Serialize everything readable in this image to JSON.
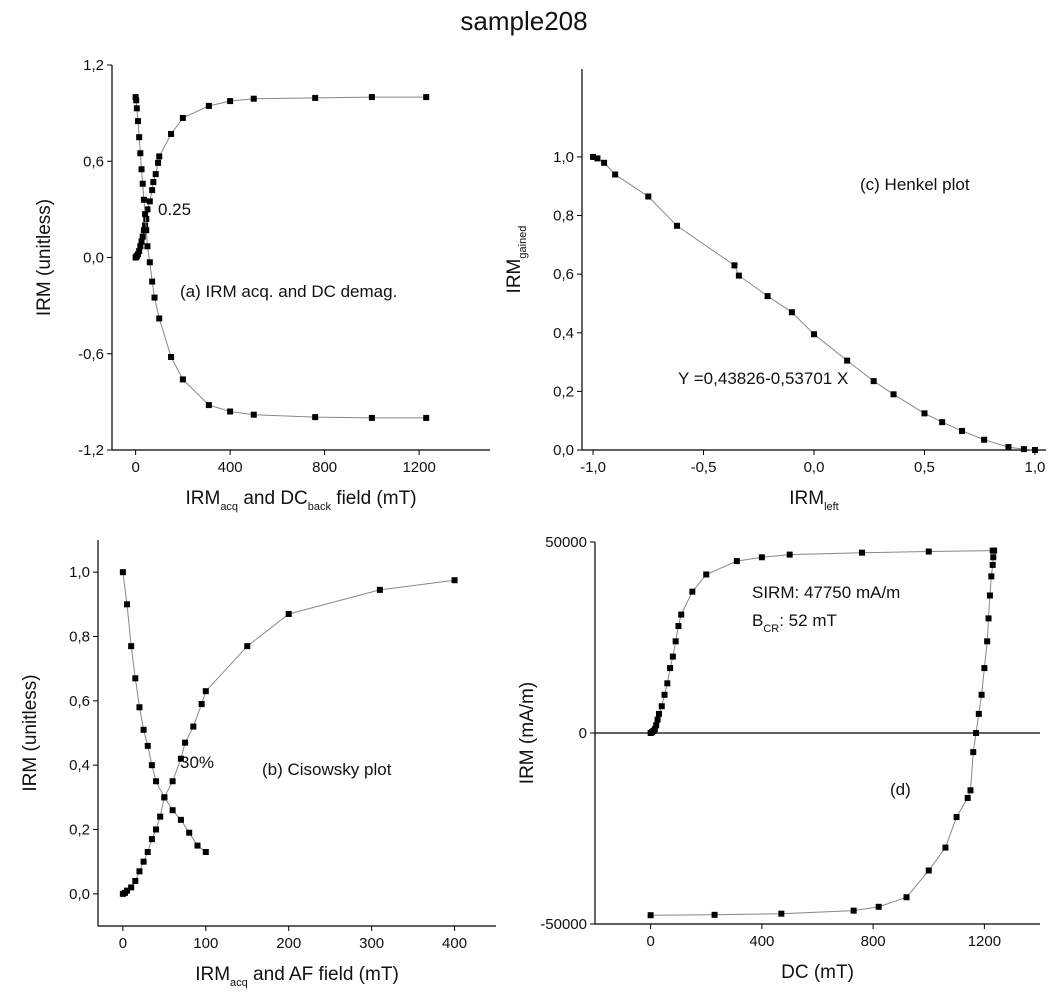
{
  "title": "sample208",
  "chart_data": [
    {
      "type": "line",
      "xlim": [
        -100,
        1500
      ],
      "ylim": [
        -1.2,
        1.2
      ],
      "xticks": [
        0,
        400,
        800,
        1200
      ],
      "yticks": [
        {
          "value": 1.2,
          "label": "1,2"
        },
        {
          "value": 0.6,
          "label": "0,6"
        },
        {
          "value": 0,
          "label": "0,0"
        },
        {
          "value": -0.6,
          "label": "-0,6"
        },
        {
          "value": -1.2,
          "label": "-1,2"
        }
      ],
      "xlabel": [
        "IRM",
        "acq",
        " and DC",
        "back",
        " field (mT)"
      ],
      "ylabel": [
        "IRM (unitless)"
      ],
      "annotations": [
        [
          "0.25"
        ],
        [
          "(a) IRM acq. and DC demag."
        ]
      ],
      "series": [
        {
          "color": "#888888",
          "marker": "#000000",
          "x": [
            0,
            2.5,
            5,
            10,
            15,
            20,
            25,
            30,
            35,
            40,
            45,
            50,
            60,
            70,
            75,
            85,
            95,
            100,
            150,
            200,
            310,
            400,
            500,
            760,
            1000,
            1230
          ],
          "values": [
            0,
            0.003,
            0.01,
            0.02,
            0.04,
            0.07,
            0.1,
            0.13,
            0.17,
            0.2,
            0.24,
            0.3,
            0.35,
            0.42,
            0.47,
            0.52,
            0.59,
            0.63,
            0.77,
            0.87,
            0.945,
            0.975,
            0.99,
            0.995,
            1.0,
            1.0
          ]
        },
        {
          "color": "#888888",
          "marker": "#000000",
          "x": [
            0,
            2.5,
            5,
            10,
            15,
            20,
            25,
            30,
            35,
            40,
            45,
            50,
            60,
            70,
            80,
            100,
            150,
            200,
            310,
            400,
            500,
            760,
            1000,
            1230
          ],
          "values": [
            1.0,
            0.98,
            0.93,
            0.85,
            0.75,
            0.65,
            0.55,
            0.46,
            0.36,
            0.27,
            0.17,
            0.07,
            -0.03,
            -0.15,
            -0.25,
            -0.38,
            -0.62,
            -0.76,
            -0.92,
            -0.96,
            -0.98,
            -0.995,
            -1.0,
            -1.0
          ]
        }
      ]
    },
    {
      "type": "line",
      "xlim": [
        -30,
        450
      ],
      "ylim": [
        -0.1,
        1.1
      ],
      "xticks": [
        0,
        100,
        200,
        300,
        400
      ],
      "yticks": [
        {
          "value": 0,
          "label": "0,0"
        },
        {
          "value": 0.2,
          "label": "0,2"
        },
        {
          "value": 0.4,
          "label": "0,4"
        },
        {
          "value": 0.6,
          "label": "0,6"
        },
        {
          "value": 0.8,
          "label": "0,8"
        },
        {
          "value": 1,
          "label": "1,0"
        }
      ],
      "xlabel": [
        "IRM",
        "acq",
        " and AF field (mT)"
      ],
      "ylabel": [
        "IRM (unitless)"
      ],
      "annotations": [
        [
          "30%"
        ],
        [
          "(b) Cisowsky plot"
        ]
      ],
      "series": [
        {
          "color": "#888888",
          "marker": "#000000",
          "x": [
            0,
            2.5,
            5,
            10,
            15,
            20,
            25,
            30,
            35,
            40,
            45,
            50,
            60,
            70,
            75,
            85,
            95,
            100,
            150,
            200,
            310,
            400
          ],
          "values": [
            0,
            0.003,
            0.01,
            0.02,
            0.04,
            0.07,
            0.1,
            0.13,
            0.17,
            0.2,
            0.24,
            0.3,
            0.35,
            0.42,
            0.47,
            0.52,
            0.59,
            0.63,
            0.77,
            0.87,
            0.945,
            0.975
          ]
        },
        {
          "color": "#888888",
          "marker": "#000000",
          "x": [
            0,
            5,
            10,
            15,
            20,
            25,
            30,
            35,
            40,
            50,
            60,
            70,
            80,
            90,
            100
          ],
          "values": [
            1.0,
            0.9,
            0.77,
            0.67,
            0.58,
            0.51,
            0.46,
            0.4,
            0.35,
            0.3,
            0.26,
            0.23,
            0.19,
            0.15,
            0.13
          ]
        }
      ]
    },
    {
      "type": "line",
      "xlim": [
        -1.05,
        1.05
      ],
      "ylim": [
        0,
        1.3
      ],
      "xticks": [
        {
          "value": -1,
          "label": "-1,0"
        },
        {
          "value": -0.5,
          "label": "-0,5"
        },
        {
          "value": 0,
          "label": "0,0"
        },
        {
          "value": 0.5,
          "label": "0,5"
        },
        {
          "value": 1,
          "label": "1,0"
        }
      ],
      "yticks": [
        {
          "value": 0,
          "label": "0,0"
        },
        {
          "value": 0.2,
          "label": "0,2"
        },
        {
          "value": 0.4,
          "label": "0,4"
        },
        {
          "value": 0.6,
          "label": "0,6"
        },
        {
          "value": 0.8,
          "label": "0,8"
        },
        {
          "value": 1,
          "label": "1,0"
        }
      ],
      "xlabel": [
        "IRM",
        "left"
      ],
      "ylabel": [
        "IRM",
        "gained"
      ],
      "annotations": [
        [
          "(c) Henkel plot"
        ],
        [
          "Y =0,43826-0,53701 X"
        ]
      ],
      "series": [
        {
          "color": "#888888",
          "marker": "#000000",
          "x": [
            -1,
            -0.98,
            -0.95,
            -0.9,
            -0.75,
            -0.62,
            -0.36,
            -0.34,
            -0.21,
            -0.1,
            0,
            0.15,
            0.27,
            0.36,
            0.5,
            0.58,
            0.67,
            0.77,
            0.88,
            0.95,
            1.0
          ],
          "values": [
            1,
            0.995,
            0.98,
            0.94,
            0.865,
            0.765,
            0.63,
            0.595,
            0.525,
            0.47,
            0.395,
            0.305,
            0.235,
            0.19,
            0.125,
            0.095,
            0.065,
            0.035,
            0.01,
            0.003,
            0
          ]
        }
      ]
    },
    {
      "type": "line",
      "xlim": [
        -200,
        1400
      ],
      "ylim": [
        -50000,
        50000
      ],
      "zero_line": true,
      "xticks": [
        0,
        400,
        800,
        1200
      ],
      "yticks": [
        50000,
        0,
        -50000
      ],
      "xlabel": [
        "DC (mT)"
      ],
      "ylabel": [
        "IRM (mA/m)"
      ],
      "annotations": [
        [
          "SIRM: 47750 mA/m"
        ],
        [
          "B",
          "CR",
          ": 52 mT"
        ],
        [
          "(d)"
        ]
      ],
      "series": [
        {
          "color": "#888888",
          "marker": "#000000",
          "x": [
            0,
            5,
            10,
            15,
            20,
            25,
            30,
            40,
            50,
            60,
            70,
            80,
            90,
            100,
            110,
            150,
            200,
            310,
            400,
            500,
            760,
            1000,
            1230
          ],
          "values": [
            0,
            200,
            500,
            1000,
            2000,
            3500,
            5000,
            7000,
            10000,
            13000,
            17000,
            20000,
            24000,
            28000,
            31000,
            37000,
            41500,
            45000,
            46000,
            46700,
            47200,
            47500,
            47750
          ]
        },
        {
          "color": "#888888",
          "marker": "#000000",
          "x": [
            0,
            230,
            470,
            730,
            820,
            920,
            1000,
            1060,
            1100,
            1140,
            1150,
            1160,
            1170,
            1180,
            1190,
            1200,
            1210,
            1215,
            1220,
            1225,
            1230,
            1232,
            1235
          ],
          "values": [
            -47700,
            -47600,
            -47300,
            -46500,
            -45500,
            -43000,
            -36000,
            -30000,
            -22000,
            -17000,
            -15000,
            -5000,
            0,
            5000,
            10000,
            17000,
            24000,
            30000,
            36000,
            41000,
            44000,
            46000,
            47750
          ]
        }
      ]
    }
  ]
}
